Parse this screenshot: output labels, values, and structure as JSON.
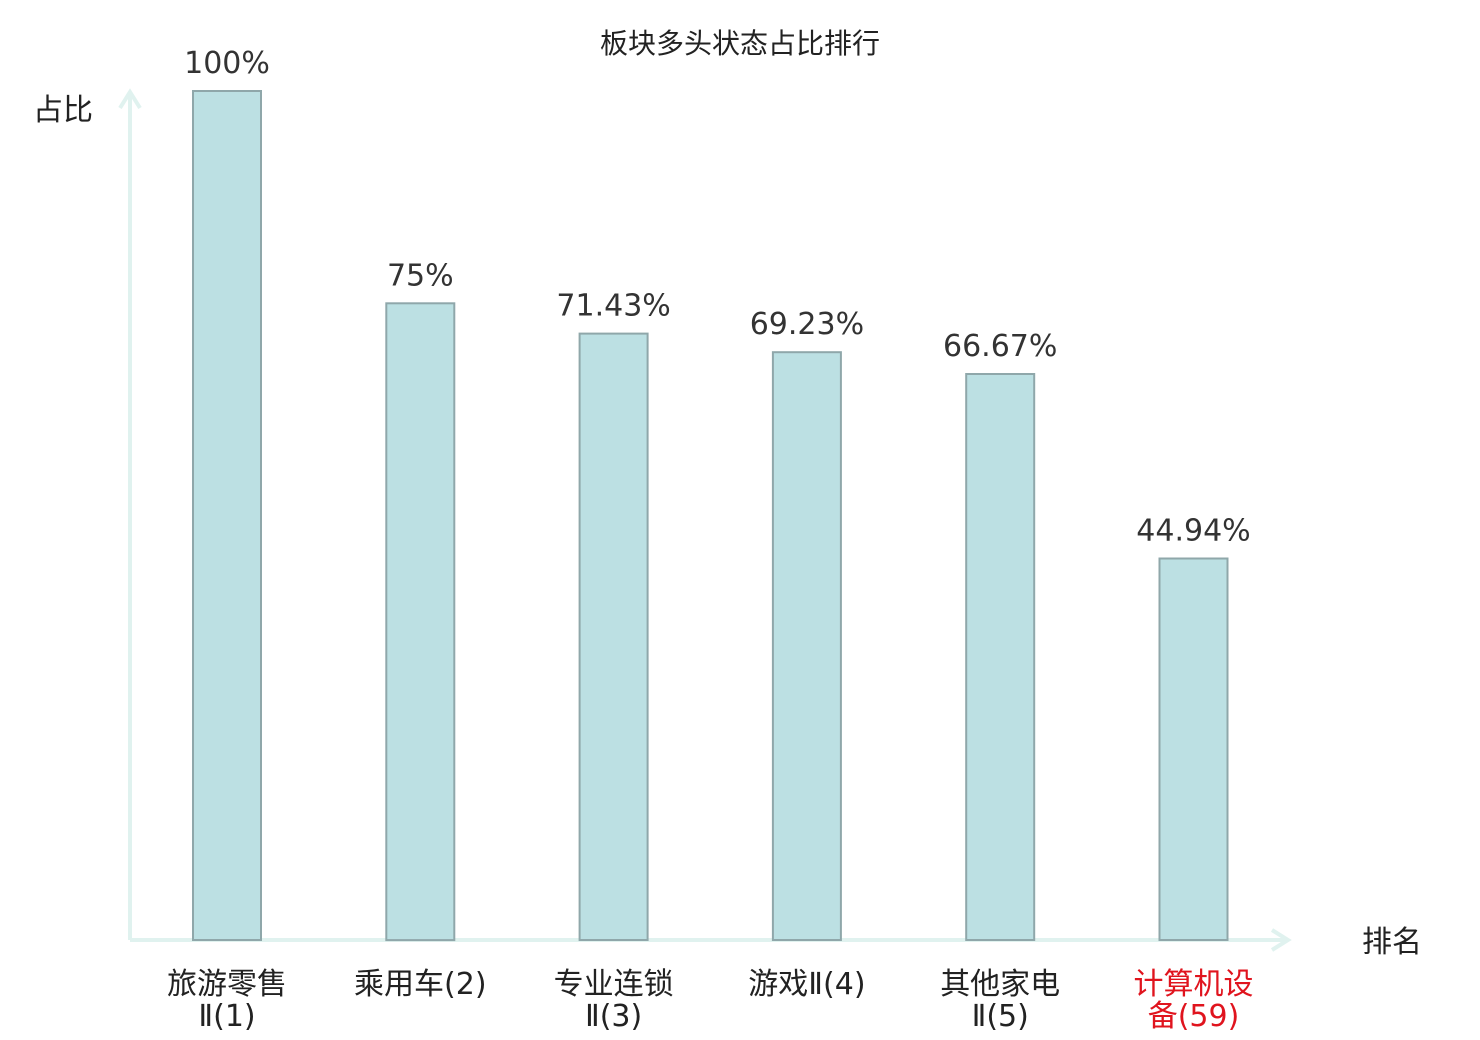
{
  "chart_data": {
    "type": "bar",
    "title": "板块多头状态占比排行",
    "xlabel": "排名",
    "ylabel": "占比",
    "categories": [
      [
        "旅游零售",
        "Ⅱ(1)"
      ],
      [
        "乘用车(2)"
      ],
      [
        "专业连锁",
        "Ⅱ(3)"
      ],
      [
        "游戏Ⅱ(4)"
      ],
      [
        "其他家电",
        "Ⅱ(5)"
      ],
      [
        "计算机设",
        "备(59)"
      ]
    ],
    "values": [
      100,
      75,
      71.43,
      69.23,
      66.67,
      44.94
    ],
    "value_labels": [
      "100%",
      "75%",
      "71.43%",
      "69.23%",
      "66.67%",
      "44.94%"
    ],
    "ylim": [
      0,
      100
    ],
    "highlight_index": 5,
    "grid": false,
    "legend": "none",
    "colors": {
      "bar_fill": "#bce0e3",
      "bar_stroke": "#8fa7aa",
      "axis": "#e0f2ef",
      "highlight_label": "#e0141e",
      "text": "#222222"
    }
  }
}
